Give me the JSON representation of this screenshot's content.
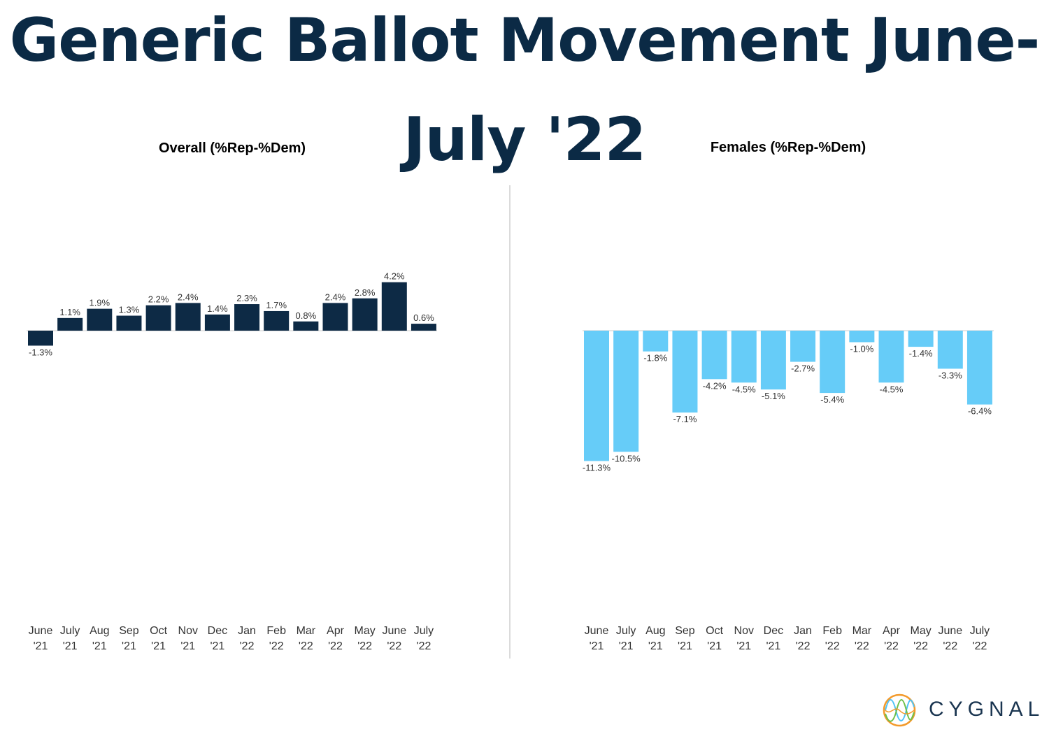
{
  "title": {
    "line1": "Generic Ballot Movement June-",
    "line2": "July '22"
  },
  "logo": {
    "text": "CYGNAL"
  },
  "chart_data": [
    {
      "type": "bar",
      "title": "Overall (%Rep-%Dem)",
      "categories": [
        [
          "June",
          "'21"
        ],
        [
          "July",
          "'21"
        ],
        [
          "Aug",
          "'21"
        ],
        [
          "Sep",
          "'21"
        ],
        [
          "Oct",
          "'21"
        ],
        [
          "Nov",
          "'21"
        ],
        [
          "Dec",
          "'21"
        ],
        [
          "Jan",
          "'22"
        ],
        [
          "Feb",
          "'22"
        ],
        [
          "Mar",
          "'22"
        ],
        [
          "Apr",
          "'22"
        ],
        [
          "May",
          "'22"
        ],
        [
          "June",
          "'22"
        ],
        [
          "July",
          "'22"
        ]
      ],
      "values": [
        -1.3,
        1.1,
        1.9,
        1.3,
        2.2,
        2.4,
        1.4,
        2.3,
        1.7,
        0.8,
        2.4,
        2.8,
        4.2,
        0.6
      ],
      "labels": [
        "-1.3%",
        "1.1%",
        "1.9%",
        "1.3%",
        "2.2%",
        "2.4%",
        "1.4%",
        "2.3%",
        "1.7%",
        "0.8%",
        "2.4%",
        "2.8%",
        "4.2%",
        "0.6%"
      ],
      "color": "#0d2a45",
      "xlabel": "",
      "ylabel": "",
      "grid": false
    },
    {
      "type": "bar",
      "title": "Females (%Rep-%Dem)",
      "categories": [
        [
          "June",
          "'21"
        ],
        [
          "July",
          "'21"
        ],
        [
          "Aug",
          "'21"
        ],
        [
          "Sep",
          "'21"
        ],
        [
          "Oct",
          "'21"
        ],
        [
          "Nov",
          "'21"
        ],
        [
          "Dec",
          "'21"
        ],
        [
          "Jan",
          "'22"
        ],
        [
          "Feb",
          "'22"
        ],
        [
          "Mar",
          "'22"
        ],
        [
          "Apr",
          "'22"
        ],
        [
          "May",
          "'22"
        ],
        [
          "June",
          "'22"
        ],
        [
          "July",
          "'22"
        ]
      ],
      "values": [
        -11.3,
        -10.5,
        -1.8,
        -7.1,
        -4.2,
        -4.5,
        -5.1,
        -2.7,
        -5.4,
        -1.0,
        -4.5,
        -1.4,
        -3.3,
        -6.4
      ],
      "labels": [
        "-11.3%",
        "-10.5%",
        "-1.8%",
        "-7.1%",
        "-4.2%",
        "-4.5%",
        "-5.1%",
        "-2.7%",
        "-5.4%",
        "-1.0%",
        "-4.5%",
        "-1.4%",
        "-3.3%",
        "-6.4%"
      ],
      "color": "#66ccf8",
      "xlabel": "",
      "ylabel": "",
      "grid": false
    }
  ]
}
